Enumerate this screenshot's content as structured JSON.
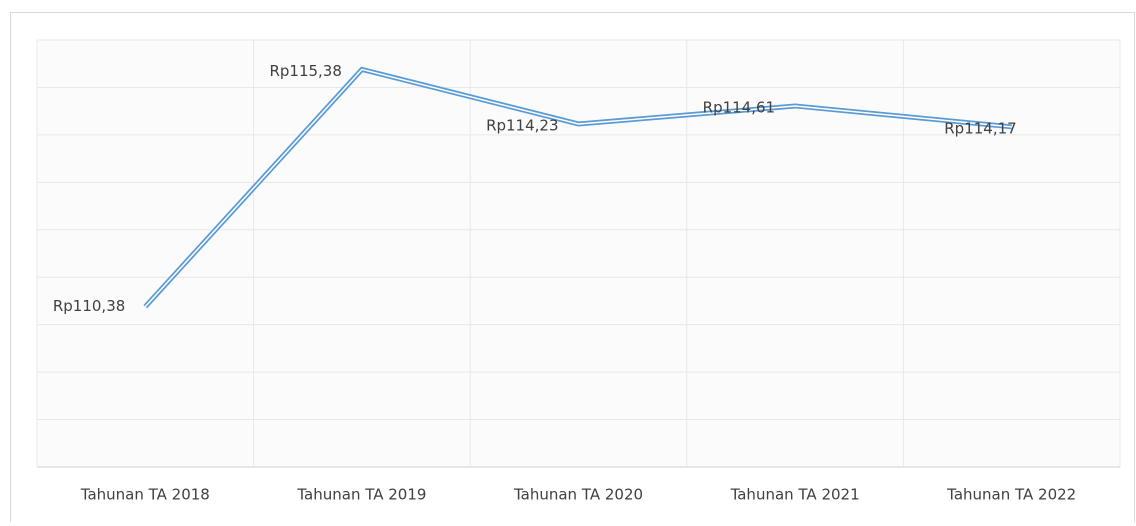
{
  "chart_data": {
    "type": "line",
    "categories": [
      "Tahunan TA 2018",
      "Tahunan TA 2019",
      "Tahunan TA 2020",
      "Tahunan TA 2021",
      "Tahunan TA 2022"
    ],
    "series": [
      {
        "color": "#5b9bd5",
        "values": [
          110.38,
          115.38,
          114.23,
          114.61,
          114.17
        ],
        "value_labels": [
          "Rp110,38",
          "Rp115,38",
          "Rp114,23",
          "Rp114,61",
          "Rp114,17"
        ]
      }
    ],
    "ylim": [
      107,
      116
    ],
    "yticks": [
      107,
      108,
      109,
      110,
      111,
      112,
      113,
      114,
      115,
      116
    ],
    "grid": true
  }
}
